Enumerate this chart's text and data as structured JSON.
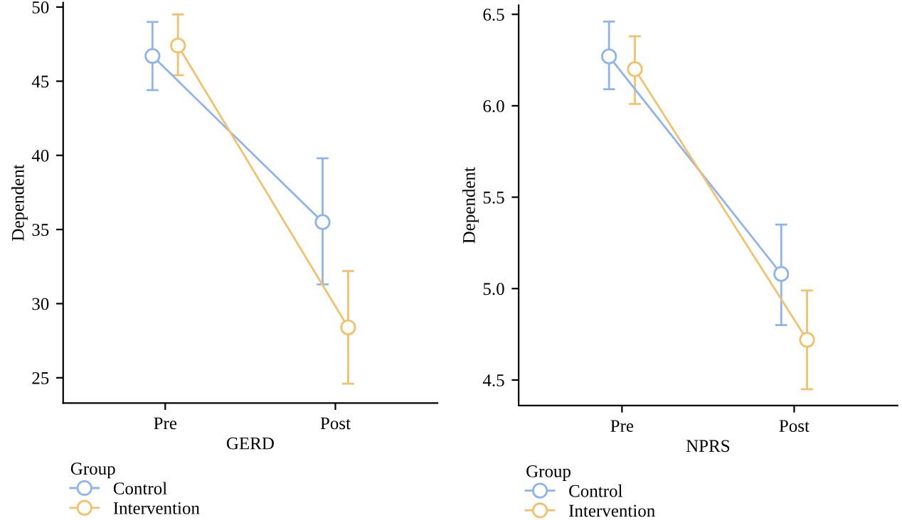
{
  "chart_data": [
    {
      "type": "line",
      "xlabel": "GERD",
      "ylabel": "Dependent",
      "legend_title": "Group",
      "legend": "bottom left",
      "marker": "circle",
      "grid": false,
      "categories": [
        "Pre",
        "Post"
      ],
      "ylim": [
        23.3,
        50.3
      ],
      "yticks": [
        25,
        30,
        35,
        40,
        45,
        50
      ],
      "series": [
        {
          "name": "Control",
          "color": "#8fb3f0",
          "values": [
            46.7,
            35.5
          ],
          "errors": [
            [
              44.4,
              49.0
            ],
            [
              31.3,
              39.8
            ]
          ]
        },
        {
          "name": "Intervention",
          "color": "#f3c16b",
          "values": [
            47.4,
            28.4
          ],
          "errors": [
            [
              45.4,
              49.5
            ],
            [
              24.6,
              32.2
            ]
          ]
        }
      ]
    },
    {
      "type": "line",
      "xlabel": "NPRS",
      "ylabel": "Dependent",
      "legend_title": "Group",
      "legend": "bottom left",
      "marker": "circle",
      "grid": false,
      "categories": [
        "Pre",
        "Post"
      ],
      "ylim": [
        4.36,
        6.55
      ],
      "yticks": [
        4.5,
        {
          "value": 5,
          "label": "5.0"
        },
        5.5,
        {
          "value": 6,
          "label": "6.0"
        },
        6.5
      ],
      "series": [
        {
          "name": "Control",
          "color": "#8fb3f0",
          "values": [
            6.27,
            5.08
          ],
          "errors": [
            [
              6.09,
              6.46
            ],
            [
              4.8,
              5.35
            ]
          ]
        },
        {
          "name": "Intervention",
          "color": "#f3c16b",
          "values": [
            6.2,
            4.72
          ],
          "errors": [
            [
              6.01,
              6.38
            ],
            [
              4.45,
              4.99
            ]
          ]
        }
      ]
    }
  ]
}
